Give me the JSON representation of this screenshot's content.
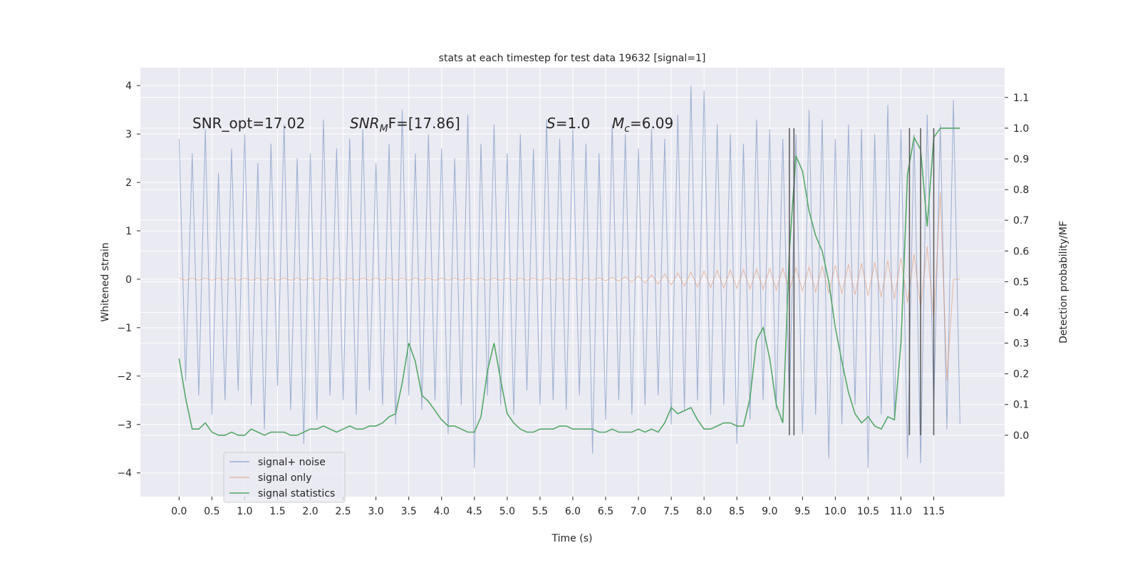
{
  "chart_data": {
    "type": "line",
    "title": "stats at each timestep for test data 19632 [signal=1]",
    "xlabel": "Time (s)",
    "ylabel": "Whitened strain",
    "y2label": "Detection probability/MF",
    "annotations": [
      {
        "base": "SNR_opt=17.02"
      },
      {
        "base": "SNR",
        "sub": "M",
        "tail": "F=[17.86]"
      },
      {
        "base": "S",
        "tail": "=1.0"
      },
      {
        "base": "M",
        "sub": "c",
        "tail": "=6.09"
      }
    ],
    "x": [
      0.0,
      0.1,
      0.2,
      0.3,
      0.4,
      0.5,
      0.6,
      0.7,
      0.8,
      0.9,
      1.0,
      1.1,
      1.2,
      1.3,
      1.4,
      1.5,
      1.6,
      1.7,
      1.8,
      1.9,
      2.0,
      2.1,
      2.2,
      2.3,
      2.4,
      2.5,
      2.6,
      2.7,
      2.8,
      2.9,
      3.0,
      3.1,
      3.2,
      3.3,
      3.4,
      3.5,
      3.6,
      3.7,
      3.8,
      3.9,
      4.0,
      4.1,
      4.2,
      4.3,
      4.4,
      4.5,
      4.6,
      4.7,
      4.8,
      4.9,
      5.0,
      5.1,
      5.2,
      5.3,
      5.4,
      5.5,
      5.6,
      5.7,
      5.8,
      5.9,
      6.0,
      6.1,
      6.2,
      6.3,
      6.4,
      6.5,
      6.6,
      6.7,
      6.8,
      6.9,
      7.0,
      7.1,
      7.2,
      7.3,
      7.4,
      7.5,
      7.6,
      7.7,
      7.8,
      7.9,
      8.0,
      8.1,
      8.2,
      8.3,
      8.4,
      8.5,
      8.6,
      8.7,
      8.8,
      8.9,
      9.0,
      9.1,
      9.2,
      9.3,
      9.4,
      9.5,
      9.6,
      9.7,
      9.8,
      9.9,
      10.0,
      10.1,
      10.2,
      10.3,
      10.4,
      10.5,
      10.6,
      10.7,
      10.8,
      10.9,
      11.0,
      11.1,
      11.2,
      11.3,
      11.4,
      11.5,
      11.6,
      11.7,
      11.8,
      11.9
    ],
    "series": [
      {
        "name": "signal+ noise",
        "color": "#4c72b0",
        "values": [
          2.9,
          -2.1,
          2.6,
          -2.4,
          3.1,
          -2.8,
          2.2,
          -2.5,
          2.7,
          -2.3,
          3.0,
          -2.6,
          2.4,
          -3.1,
          2.8,
          -2.2,
          3.2,
          -2.7,
          2.5,
          -3.4,
          2.6,
          -2.9,
          3.3,
          -2.4,
          2.7,
          -2.5,
          2.9,
          -2.8,
          3.1,
          -2.3,
          2.4,
          -2.6,
          2.8,
          -3.0,
          3.5,
          -2.4,
          2.6,
          -2.7,
          3.0,
          -2.5,
          2.7,
          -3.2,
          2.5,
          -2.6,
          3.4,
          -3.9,
          2.8,
          -2.4,
          3.2,
          -2.6,
          2.6,
          -2.8,
          3.0,
          -2.3,
          2.7,
          -2.6,
          3.3,
          -2.5,
          2.9,
          -2.7,
          3.1,
          -2.4,
          2.8,
          -3.6,
          2.6,
          -2.9,
          3.2,
          -2.5,
          3.0,
          -2.8,
          2.7,
          -2.6,
          3.1,
          -2.4,
          2.9,
          -3.0,
          3.4,
          -2.7,
          4.0,
          -2.5,
          3.9,
          -2.8,
          3.2,
          -2.6,
          3.0,
          -3.4,
          2.8,
          -2.9,
          3.3,
          -2.5,
          3.1,
          -2.7,
          2.9,
          -2.6,
          3.0,
          -3.2,
          3.5,
          -2.8,
          3.3,
          -3.7,
          2.9,
          -3.0,
          3.2,
          -2.6,
          3.1,
          -3.9,
          3.0,
          -2.8,
          3.6,
          -2.9,
          3.1,
          -3.7,
          3.0,
          -3.8,
          3.4,
          -2.7,
          3.2,
          -3.1,
          3.7,
          -3.0
        ]
      },
      {
        "name": "signal only",
        "color": "#dd8452",
        "values": [
          0.02,
          -0.02,
          0.02,
          -0.02,
          0.02,
          -0.02,
          0.02,
          -0.02,
          0.02,
          -0.02,
          0.02,
          -0.02,
          0.02,
          -0.02,
          0.02,
          -0.02,
          0.02,
          -0.02,
          0.02,
          -0.02,
          0.02,
          -0.02,
          0.02,
          -0.02,
          0.02,
          -0.02,
          0.02,
          -0.02,
          0.02,
          -0.02,
          0.02,
          -0.02,
          0.02,
          -0.02,
          0.02,
          -0.02,
          0.02,
          -0.02,
          0.02,
          -0.02,
          0.02,
          -0.02,
          0.02,
          -0.02,
          0.02,
          -0.02,
          0.02,
          -0.02,
          0.02,
          -0.02,
          0.02,
          -0.02,
          0.02,
          -0.02,
          0.02,
          -0.02,
          0.02,
          -0.02,
          0.02,
          -0.02,
          0.02,
          -0.02,
          0.02,
          -0.02,
          0.03,
          -0.03,
          0.04,
          -0.04,
          0.05,
          -0.06,
          0.07,
          -0.08,
          0.09,
          -0.1,
          0.11,
          -0.12,
          0.13,
          -0.14,
          0.15,
          -0.16,
          0.17,
          -0.17,
          0.18,
          -0.18,
          0.19,
          -0.19,
          0.2,
          -0.2,
          0.21,
          -0.21,
          0.22,
          -0.22,
          0.23,
          -0.23,
          0.24,
          -0.24,
          0.25,
          -0.26,
          0.27,
          -0.28,
          0.29,
          -0.3,
          0.31,
          -0.32,
          0.33,
          -0.34,
          0.35,
          -0.37,
          0.39,
          -0.41,
          0.44,
          -0.48,
          0.52,
          -0.58,
          0.68,
          -0.85,
          1.8,
          -2.1,
          0.0,
          0.0
        ]
      },
      {
        "name": "signal statistics",
        "color": "#55a868",
        "axis": "y2",
        "values": [
          0.25,
          0.12,
          0.02,
          0.02,
          0.04,
          0.01,
          0.0,
          0.0,
          0.01,
          0.0,
          0.0,
          0.02,
          0.01,
          0.0,
          0.01,
          0.01,
          0.01,
          0.0,
          0.0,
          0.01,
          0.02,
          0.02,
          0.03,
          0.02,
          0.01,
          0.02,
          0.03,
          0.02,
          0.02,
          0.03,
          0.03,
          0.04,
          0.06,
          0.07,
          0.17,
          0.3,
          0.24,
          0.13,
          0.11,
          0.08,
          0.05,
          0.03,
          0.03,
          0.02,
          0.01,
          0.01,
          0.06,
          0.21,
          0.3,
          0.18,
          0.07,
          0.04,
          0.02,
          0.01,
          0.01,
          0.02,
          0.02,
          0.02,
          0.03,
          0.03,
          0.02,
          0.02,
          0.02,
          0.02,
          0.01,
          0.01,
          0.02,
          0.01,
          0.01,
          0.01,
          0.02,
          0.01,
          0.02,
          0.01,
          0.04,
          0.09,
          0.07,
          0.08,
          0.09,
          0.05,
          0.02,
          0.02,
          0.03,
          0.04,
          0.04,
          0.03,
          0.03,
          0.12,
          0.31,
          0.35,
          0.25,
          0.1,
          0.04,
          0.6,
          0.91,
          0.86,
          0.73,
          0.65,
          0.6,
          0.5,
          0.35,
          0.24,
          0.14,
          0.07,
          0.04,
          0.06,
          0.03,
          0.02,
          0.06,
          0.05,
          0.3,
          0.85,
          0.97,
          0.93,
          0.68,
          0.97,
          1.0,
          1.0,
          1.0,
          1.0
        ]
      }
    ],
    "vlines": {
      "x": [
        9.3,
        9.37,
        11.13,
        11.3,
        11.5
      ],
      "ymin": 0,
      "ymax": 1,
      "axis": "y2",
      "color": "#555555"
    },
    "xlim": [
      -0.59,
      12.58
    ],
    "xticks": [
      {
        "value": 0,
        "label": "0.0"
      },
      0.5,
      {
        "value": 1,
        "label": "1.0"
      },
      1.5,
      {
        "value": 2,
        "label": "2.0"
      },
      2.5,
      {
        "value": 3,
        "label": "3.0"
      },
      3.5,
      {
        "value": 4,
        "label": "4.0"
      },
      4.5,
      {
        "value": 5,
        "label": "5.0"
      },
      5.5,
      {
        "value": 6,
        "label": "6.0"
      },
      6.5,
      {
        "value": 7,
        "label": "7.0"
      },
      7.5,
      {
        "value": 8,
        "label": "8.0"
      },
      8.5,
      {
        "value": 9,
        "label": "9.0"
      },
      9.5,
      {
        "value": 10,
        "label": "10.0"
      },
      10.5,
      {
        "value": 11,
        "label": "11.0"
      },
      11.5
    ],
    "ylim": [
      -4.49,
      4.37
    ],
    "yticks": [
      {
        "value": -4,
        "label": "−4"
      },
      {
        "value": -3,
        "label": "−3"
      },
      {
        "value": -2,
        "label": "−2"
      },
      {
        "value": -1,
        "label": "−1"
      },
      0,
      1,
      2,
      3,
      4
    ],
    "y2lim": [
      -0.2,
      1.197
    ],
    "y2ticks": [
      {
        "value": 0,
        "label": "0.0"
      },
      0.1,
      0.2,
      0.3,
      0.4,
      0.5,
      0.6,
      0.7,
      0.8,
      0.9,
      {
        "value": 1,
        "label": "1.0"
      },
      1.1
    ],
    "grid": true,
    "legend": "lower left"
  }
}
